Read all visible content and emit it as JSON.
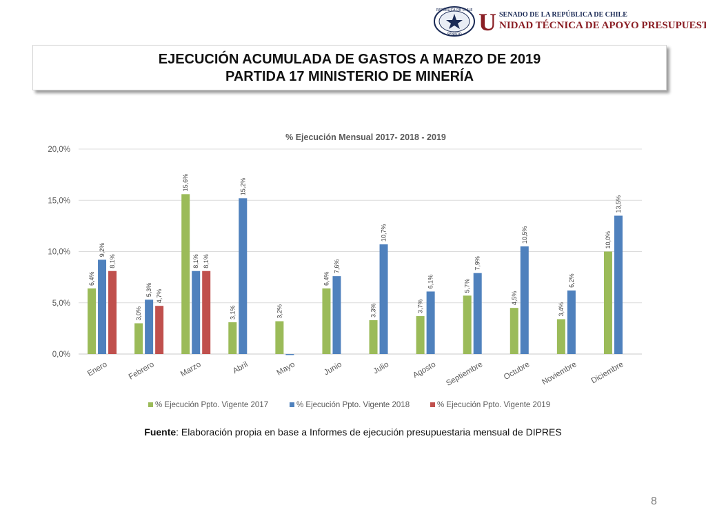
{
  "header": {
    "seal_text_top": "REPÚBLICA DE CHILE",
    "seal_text_bottom": "SENADO",
    "org_initial": "U",
    "org_line1": "SENADO DE LA REPÚBLICA DE CHILE",
    "org_line2": "NIDAD TÉCNICA DE APOYO PRESUPUESTARIO"
  },
  "title": {
    "line1": "EJECUCIÓN ACUMULADA DE GASTOS A MARZO DE 2019",
    "line2": "PARTIDA 17 MINISTERIO DE MINERÍA"
  },
  "chart_data": {
    "type": "bar",
    "title": "% Ejecución Mensual 2017- 2018 - 2019",
    "xlabel": "",
    "ylabel": "",
    "ylim": [
      0,
      20
    ],
    "yticks": [
      "0,0%",
      "5,0%",
      "10,0%",
      "15,0%",
      "20,0%"
    ],
    "ytick_values": [
      0,
      5,
      10,
      15,
      20
    ],
    "grid": true,
    "legend_position": "bottom",
    "categories": [
      "Enero",
      "Febrero",
      "Marzo",
      "Abril",
      "Mayo",
      "Junio",
      "Julio",
      "Agosto",
      "Septiembre",
      "Octubre",
      "Noviembre",
      "Diciembre"
    ],
    "series": [
      {
        "name": "% Ejecución Ppto. Vigente 2017",
        "color": "#9bbb59",
        "values": [
          6.4,
          3.0,
          15.6,
          3.1,
          3.2,
          6.4,
          3.3,
          3.7,
          5.7,
          4.5,
          3.4,
          10.0
        ],
        "labels": [
          "6,4%",
          "3,0%",
          "15,6%",
          "3,1%",
          "3,2%",
          "6,4%",
          "3,3%",
          "3,7%",
          "5,7%",
          "4,5%",
          "3,4%",
          "10,0%"
        ]
      },
      {
        "name": "% Ejecución Ppto. Vigente 2018",
        "color": "#4f81bd",
        "values": [
          9.2,
          5.3,
          8.1,
          15.2,
          -0.1,
          7.6,
          10.7,
          6.1,
          7.9,
          10.5,
          6.2,
          13.5
        ],
        "labels": [
          "9,2%",
          "5,3%",
          "8,1%",
          "15,2%",
          "",
          "7,6%",
          "10,7%",
          "6,1%",
          "7,9%",
          "10,5%",
          "6,2%",
          "13,5%"
        ]
      },
      {
        "name": "% Ejecución Ppto. Vigente 2019",
        "color": "#c0504d",
        "values": [
          8.1,
          4.7,
          8.1,
          null,
          null,
          null,
          null,
          null,
          null,
          null,
          null,
          null
        ],
        "labels": [
          "8,1%",
          "4,7%",
          "8,1%",
          "",
          "",
          "",
          "",
          "",
          "",
          "",
          "",
          ""
        ]
      }
    ]
  },
  "source": {
    "label": "Fuente",
    "text": ": Elaboración propia en base  a Informes de ejecución presupuestaria mensual de DIPRES"
  },
  "page_number": "8"
}
